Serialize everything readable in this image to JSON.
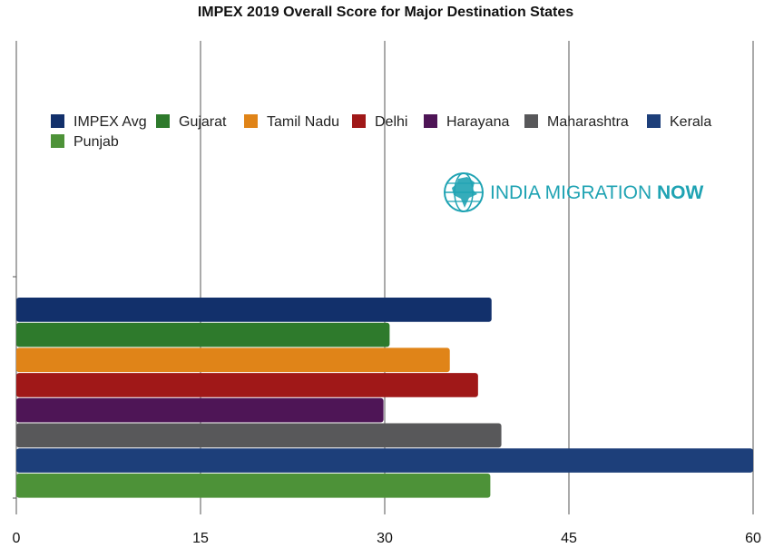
{
  "chart_data": {
    "type": "bar",
    "orientation": "horizontal",
    "title": "IMPEX 2019 Overall Score for Major Destination States",
    "xlabel": "",
    "ylabel": "",
    "xlim": [
      0,
      60
    ],
    "x_ticks": [
      0,
      15,
      30,
      45,
      60
    ],
    "grid": "vertical",
    "legend_position": "top",
    "series": [
      {
        "name": "IMPEX Avg",
        "value": 38.7,
        "color": "#12306b"
      },
      {
        "name": "Gujarat",
        "value": 30.4,
        "color": "#2e7a2c"
      },
      {
        "name": "Tamil Nadu",
        "value": 35.3,
        "color": "#e08418"
      },
      {
        "name": "Delhi",
        "value": 37.6,
        "color": "#a01818"
      },
      {
        "name": "Harayana",
        "value": 29.9,
        "color": "#4e1556"
      },
      {
        "name": "Maharashtra",
        "value": 39.5,
        "color": "#58585a"
      },
      {
        "name": "Kerala",
        "value": 60.0,
        "color": "#1d3f7a"
      },
      {
        "name": "Punjab",
        "value": 38.6,
        "color": "#4d9238"
      }
    ]
  },
  "watermark": {
    "text_main": "INDIA MIGRATION ",
    "text_accent": "NOW",
    "color": "#1fa3b3",
    "icon": "india-globe-icon"
  }
}
